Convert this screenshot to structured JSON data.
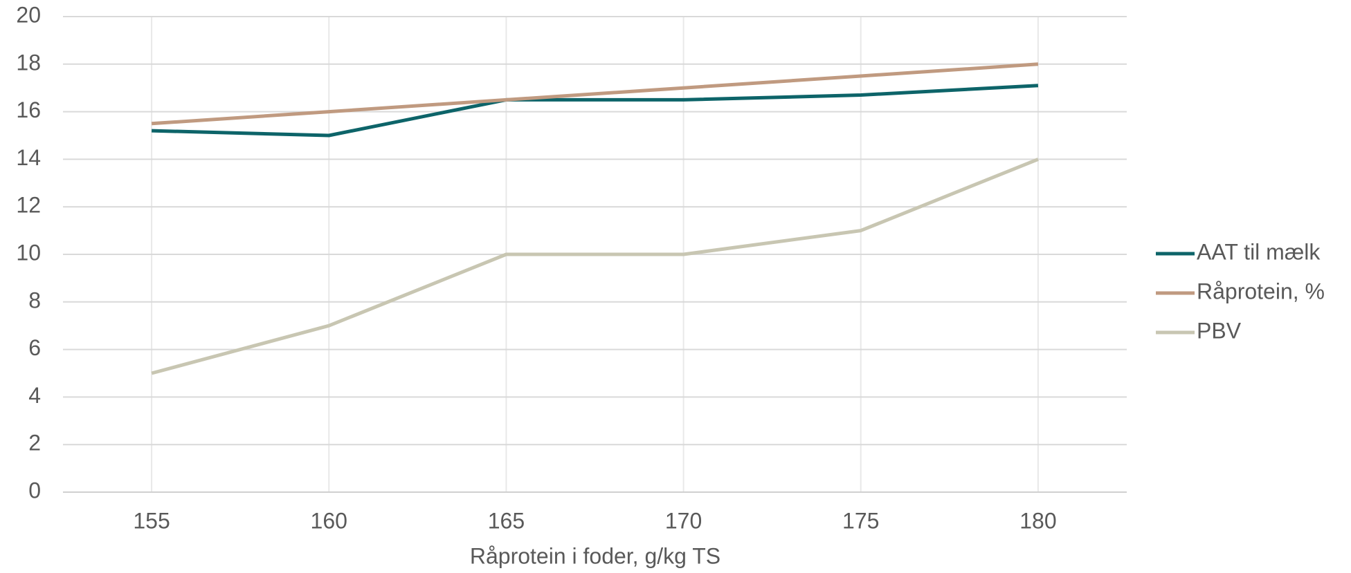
{
  "chart_data": {
    "type": "line",
    "x_label": "Råprotein i foder, g/kg TS",
    "x": [
      155,
      160,
      165,
      170,
      175,
      180
    ],
    "series": [
      {
        "name": "AAT til mælk",
        "color": "#0d6469",
        "values": [
          15.2,
          15.0,
          16.5,
          16.5,
          16.7,
          17.1
        ]
      },
      {
        "name": "Råprotein, %",
        "color": "#c09a80",
        "values": [
          15.5,
          16,
          16.5,
          17,
          17.5,
          18
        ]
      },
      {
        "name": "PBV",
        "color": "#c8c6b2",
        "values": [
          5,
          7,
          10,
          10,
          11,
          14
        ]
      }
    ],
    "xlim": [
      152.5,
      182.5
    ],
    "xticks": [
      155,
      160,
      165,
      170,
      175,
      180
    ],
    "ylim": [
      0,
      20
    ],
    "yticks": [
      0,
      2,
      4,
      6,
      8,
      10,
      12,
      14,
      16,
      18,
      20
    ],
    "grid": true,
    "legend": "right"
  }
}
